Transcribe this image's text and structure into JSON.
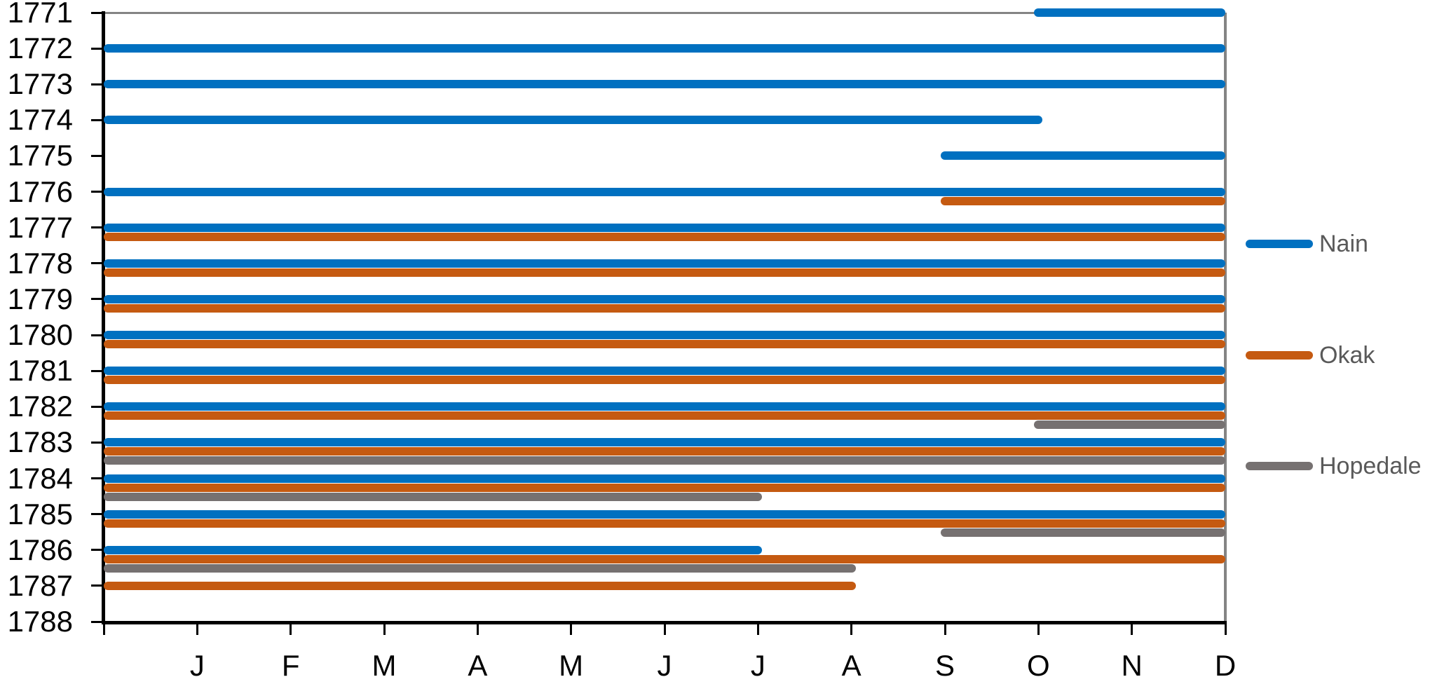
{
  "chart_data": {
    "type": "bar",
    "subtype": "timeline-gantt",
    "title": "",
    "x_axis": {
      "unit": "month",
      "range": [
        0,
        12
      ],
      "tick_labels": [
        "J",
        "F",
        "M",
        "A",
        "M",
        "J",
        "J",
        "A",
        "S",
        "O",
        "N",
        "D"
      ],
      "tick_label_position": "month-end",
      "grid": false
    },
    "y_axis": {
      "tick_labels": [
        "1771",
        "1772",
        "1773",
        "1774",
        "1775",
        "1776",
        "1777",
        "1778",
        "1779",
        "1780",
        "1781",
        "1782",
        "1783",
        "1784",
        "1785",
        "1786",
        "1787",
        "1788"
      ],
      "first_year": 1771,
      "last_year": 1788
    },
    "legend": {
      "position": "right",
      "items": [
        {
          "label": "Nain",
          "color": "#0070C0"
        },
        {
          "label": "Okak",
          "color": "#C55A11"
        },
        {
          "label": "Hopedale",
          "color": "#767171"
        }
      ]
    },
    "series": [
      {
        "name": "Nain",
        "color": "#0070C0",
        "slot": 0,
        "segments": [
          {
            "year": 1771,
            "start": 10,
            "end": 12
          },
          {
            "year": 1772,
            "start": 0,
            "end": 12
          },
          {
            "year": 1773,
            "start": 0,
            "end": 12
          },
          {
            "year": 1774,
            "start": 0,
            "end": 10
          },
          {
            "year": 1775,
            "start": 9,
            "end": 12
          },
          {
            "year": 1776,
            "start": 0,
            "end": 12
          },
          {
            "year": 1777,
            "start": 0,
            "end": 12
          },
          {
            "year": 1778,
            "start": 0,
            "end": 12
          },
          {
            "year": 1779,
            "start": 0,
            "end": 12
          },
          {
            "year": 1780,
            "start": 0,
            "end": 12
          },
          {
            "year": 1781,
            "start": 0,
            "end": 12
          },
          {
            "year": 1782,
            "start": 0,
            "end": 12
          },
          {
            "year": 1783,
            "start": 0,
            "end": 12
          },
          {
            "year": 1784,
            "start": 0,
            "end": 12
          },
          {
            "year": 1785,
            "start": 0,
            "end": 12
          },
          {
            "year": 1786,
            "start": 0,
            "end": 7
          }
        ]
      },
      {
        "name": "Okak",
        "color": "#C55A11",
        "slot": 1,
        "segments": [
          {
            "year": 1776,
            "start": 9,
            "end": 12
          },
          {
            "year": 1777,
            "start": 0,
            "end": 12
          },
          {
            "year": 1778,
            "start": 0,
            "end": 12
          },
          {
            "year": 1779,
            "start": 0,
            "end": 12
          },
          {
            "year": 1780,
            "start": 0,
            "end": 12
          },
          {
            "year": 1781,
            "start": 0,
            "end": 12
          },
          {
            "year": 1782,
            "start": 0,
            "end": 12
          },
          {
            "year": 1783,
            "start": 0,
            "end": 12
          },
          {
            "year": 1784,
            "start": 0,
            "end": 12
          },
          {
            "year": 1785,
            "start": 0,
            "end": 12
          },
          {
            "year": 1786,
            "start": 0,
            "end": 12
          },
          {
            "year": 1787,
            "start": 0,
            "end": 8,
            "slot": 0
          }
        ]
      },
      {
        "name": "Hopedale",
        "color": "#767171",
        "slot": 2,
        "segments": [
          {
            "year": 1782,
            "start": 10,
            "end": 12
          },
          {
            "year": 1783,
            "start": 0,
            "end": 12
          },
          {
            "year": 1784,
            "start": 0,
            "end": 7
          },
          {
            "year": 1785,
            "start": 9,
            "end": 12
          },
          {
            "year": 1786,
            "start": 0,
            "end": 8
          }
        ]
      }
    ]
  },
  "colors": {
    "background": "#FFFFFF",
    "axis": "#000000",
    "plot_border": "#848484",
    "legend_text": "#595959",
    "nain": "#0070C0",
    "okak": "#C55A11",
    "hopedale": "#767171"
  }
}
